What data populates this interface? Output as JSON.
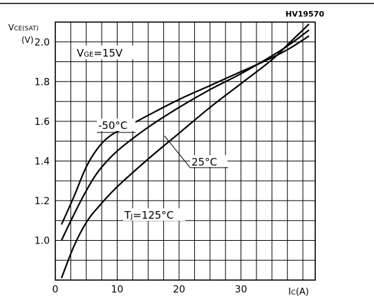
{
  "chart_data": {
    "type": "line",
    "code": "HV19570",
    "condition": "V_GE=15V",
    "ylabel_main": "V",
    "ylabel_sub": "CE(SAT)",
    "ylabel_unit": "(V)",
    "xlabel_main": "I",
    "xlabel_sub": "C",
    "xlabel_unit": "(A)",
    "xlim": [
      0,
      42
    ],
    "ylim": [
      0.8,
      2.1
    ],
    "xticks": [
      0,
      10,
      20,
      30
    ],
    "yticks": [
      1.0,
      1.2,
      1.4,
      1.6,
      1.8,
      2.0
    ],
    "ytick_labels": [
      "1.0",
      "1.2",
      "1.4",
      "1.6",
      "1.8",
      "2.0"
    ],
    "xtick_labels": [
      "0",
      "10",
      "20",
      "30"
    ],
    "grid": true,
    "series": [
      {
        "name": "-50°C",
        "x": [
          1,
          3,
          5,
          7,
          9,
          12,
          15,
          20,
          25,
          30,
          35,
          38,
          41
        ],
        "y": [
          1.08,
          1.22,
          1.37,
          1.47,
          1.53,
          1.58,
          1.63,
          1.71,
          1.78,
          1.85,
          1.92,
          1.97,
          2.03
        ]
      },
      {
        "name": "25°C",
        "x": [
          1,
          3,
          5,
          7,
          10,
          15,
          20,
          25,
          30,
          35,
          38,
          41
        ],
        "y": [
          1.0,
          1.13,
          1.25,
          1.35,
          1.45,
          1.57,
          1.67,
          1.76,
          1.84,
          1.93,
          1.99,
          2.06
        ]
      },
      {
        "name": "T_J=125°C",
        "x": [
          1,
          3,
          5,
          7,
          10,
          15,
          20,
          25,
          30,
          35,
          38,
          41
        ],
        "y": [
          0.81,
          0.97,
          1.09,
          1.17,
          1.27,
          1.41,
          1.54,
          1.67,
          1.79,
          1.91,
          2.0,
          2.09
        ]
      }
    ],
    "annotations": {
      "minus50": "-50°C",
      "t25": "25°C",
      "tj_main": "T",
      "tj_sub": "J",
      "tj_rest": "=125°C",
      "vge_main": "V",
      "vge_sub": "GE",
      "vge_rest": "=15V"
    }
  }
}
